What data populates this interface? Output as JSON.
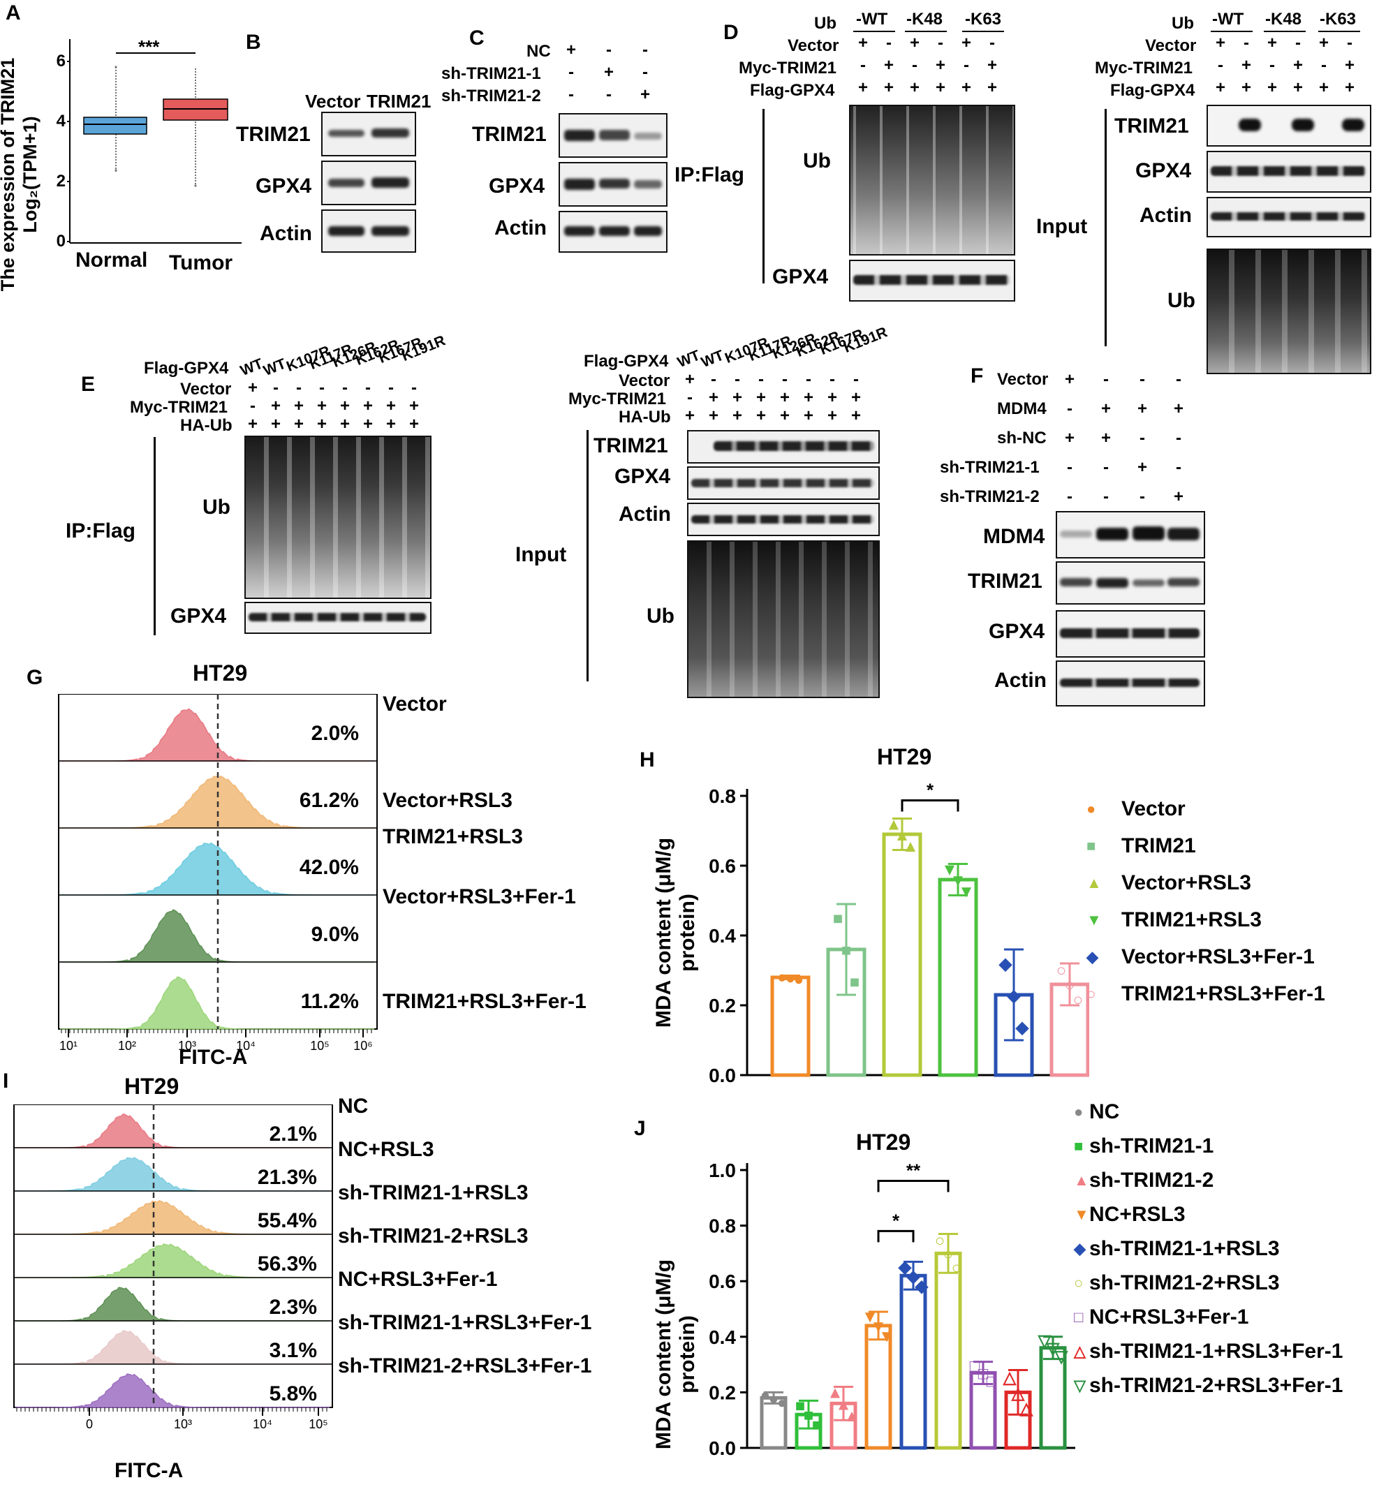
{
  "panels": [
    "A",
    "B",
    "C",
    "D",
    "E",
    "F",
    "G",
    "H",
    "I",
    "J"
  ],
  "panelA": {
    "ylabel1": "The expression of TRIM21",
    "ylabel2": "Log₂(TPM+1)",
    "yticks": [
      "6",
      "4",
      "2",
      "0"
    ],
    "categories": [
      "Normal",
      "Tumor"
    ],
    "sig": "***",
    "colors": {
      "normal": "#5aa4d8",
      "tumor": "#e45b5b"
    }
  },
  "panelB": {
    "cols": [
      "Vector",
      "TRIM21"
    ],
    "rows": [
      "TRIM21",
      "GPX4",
      "Actin"
    ]
  },
  "panelC": {
    "conds": [
      "NC",
      "sh-TRIM21-1",
      "sh-TRIM21-2"
    ],
    "signs": [
      [
        "+",
        "-",
        "-"
      ],
      [
        "-",
        "+",
        "-"
      ],
      [
        "-",
        "-",
        "+"
      ]
    ],
    "rows": [
      "TRIM21",
      "GPX4",
      "Actin"
    ]
  },
  "panelD": {
    "ub_types": [
      "-WT",
      "-K48",
      "-K63"
    ],
    "cond_labels": [
      "Ub",
      "Vector",
      "Myc-TRIM21",
      "Flag-GPX4"
    ],
    "signs_vector": [
      "+",
      "-",
      "+",
      "-",
      "+",
      "-"
    ],
    "signs_myc": [
      "-",
      "+",
      "-",
      "+",
      "-",
      "+"
    ],
    "signs_flag": [
      "+",
      "+",
      "+",
      "+",
      "+",
      "+"
    ],
    "ip_label": "IP:Flag",
    "ip_rows": [
      "Ub",
      "GPX4"
    ],
    "input_label": "Input",
    "input_rows": [
      "TRIM21",
      "GPX4",
      "Actin",
      "Ub"
    ]
  },
  "panelE": {
    "flag_label": "Flag-GPX4",
    "mutants": [
      "WT",
      "WT",
      "K107R",
      "K117R",
      "K126R",
      "K162R",
      "K167R",
      "K191R"
    ],
    "cond_labels": [
      "Vector",
      "Myc-TRIM21",
      "HA-Ub"
    ],
    "signs_vector": [
      "+",
      "-",
      "-",
      "-",
      "-",
      "-",
      "-",
      "-"
    ],
    "signs_myc": [
      "-",
      "+",
      "+",
      "+",
      "+",
      "+",
      "+",
      "+"
    ],
    "signs_ha": [
      "+",
      "+",
      "+",
      "+",
      "+",
      "+",
      "+",
      "+"
    ],
    "ip_label": "IP:Flag",
    "ip_rows": [
      "Ub",
      "GPX4"
    ],
    "input_label": "Input",
    "input_rows": [
      "TRIM21",
      "GPX4",
      "Actin",
      "Ub"
    ]
  },
  "panelF": {
    "conds": [
      "Vector",
      "MDM4",
      "sh-NC",
      "sh-TRIM21-1",
      "sh-TRIM21-2"
    ],
    "signs": [
      [
        "+",
        "-",
        "-",
        "-"
      ],
      [
        "-",
        "+",
        "+",
        "+"
      ],
      [
        "+",
        "+",
        "-",
        "-"
      ],
      [
        "-",
        "-",
        "+",
        "-"
      ],
      [
        "-",
        "-",
        "-",
        "+"
      ]
    ],
    "rows": [
      "MDM4",
      "TRIM21",
      "GPX4",
      "Actin"
    ]
  },
  "panelG": {
    "title": "HT29",
    "xlabel": "FITC-A",
    "xticks": [
      "10¹",
      "10²",
      "10³",
      "10⁴",
      "10⁵",
      "10⁶"
    ],
    "percents": [
      "2.0%",
      "61.2%",
      "42.0%",
      "9.0%",
      "11.2%"
    ],
    "conds": [
      "Vector",
      "Vector+RSL3",
      "TRIM21+RSL3",
      "Vector+RSL3+Fer-1",
      "TRIM21+RSL3+Fer-1"
    ],
    "colors": [
      "#e87a84",
      "#f0b877",
      "#6fcce0",
      "#5e9155",
      "#9ed67c"
    ]
  },
  "panelI": {
    "title": "HT29",
    "xlabel": "FITC-A",
    "xticks": [
      "0",
      "10³",
      "10⁴",
      "10⁵"
    ],
    "percents": [
      "2.1%",
      "21.3%",
      "55.4%",
      "56.3%",
      "2.3%",
      "3.1%",
      "5.8%"
    ],
    "conds": [
      "NC",
      "NC+RSL3",
      "sh-TRIM21-1+RSL3",
      "sh-TRIM21-2+RSL3",
      "NC+RSL3+Fer-1",
      "sh-TRIM21-1+RSL3+Fer-1",
      "sh-TRIM21-2+RSL3+Fer-1"
    ],
    "colors": [
      "#e87a84",
      "#7fcde0",
      "#f0b877",
      "#9ed67c",
      "#5e9155",
      "#e8c8c8",
      "#9c6fc2"
    ]
  },
  "chart_data": [
    {
      "type": "bar",
      "panel": "H",
      "title": "HT29",
      "ylabel": "MDA content (μM/g protein)",
      "ylim": [
        0,
        0.8
      ],
      "yticks": [
        "0.8",
        "0.6",
        "0.4",
        "0.2",
        "0.0"
      ],
      "categories": [
        "Vector",
        "TRIM21",
        "Vector+RSL3",
        "TRIM21+RSL3",
        "Vector+RSL3+Fer-1",
        "TRIM21+RSL3+Fer-1"
      ],
      "values": [
        0.28,
        0.36,
        0.69,
        0.56,
        0.23,
        0.26
      ],
      "errors": [
        0.005,
        0.13,
        0.045,
        0.045,
        0.13,
        0.06
      ],
      "colors": [
        "#f08a28",
        "#7fc48a",
        "#b3c93a",
        "#4cc23f",
        "#2850b4",
        "#f0909a"
      ],
      "markers": [
        "●",
        "■",
        "▲",
        "▼",
        "◆",
        "○"
      ],
      "significance": [
        {
          "label": "*"
        }
      ]
    },
    {
      "type": "bar",
      "panel": "J",
      "title": "HT29",
      "ylabel": "MDA content (μM/g protein)",
      "ylim": [
        0,
        1.0
      ],
      "yticks": [
        "1.0",
        "0.8",
        "0.6",
        "0.4",
        "0.2",
        "0.0"
      ],
      "categories": [
        "NC",
        "sh-TRIM21-1",
        "sh-TRIM21-2",
        "NC+RSL3",
        "sh-TRIM21-1+RSL3",
        "sh-TRIM21-2+RSL3",
        "NC+RSL3+Fer-1",
        "sh-TRIM21-1+RSL3+Fer-1",
        "sh-TRIM21-2+RSL3+Fer-1"
      ],
      "values": [
        0.18,
        0.12,
        0.16,
        0.44,
        0.62,
        0.7,
        0.27,
        0.2,
        0.36
      ],
      "errors": [
        0.02,
        0.05,
        0.06,
        0.05,
        0.05,
        0.07,
        0.04,
        0.08,
        0.04
      ],
      "colors": [
        "#888888",
        "#2fbf3a",
        "#f07d84",
        "#f08a28",
        "#2850b4",
        "#b8c93a",
        "#9050b0",
        "#e02828",
        "#2a9140"
      ],
      "markers": [
        "●",
        "■",
        "▲",
        "▼",
        "◆",
        "○",
        "□",
        "△",
        "▽"
      ],
      "significance": [
        {
          "label": "*"
        },
        {
          "label": "**"
        }
      ]
    }
  ]
}
